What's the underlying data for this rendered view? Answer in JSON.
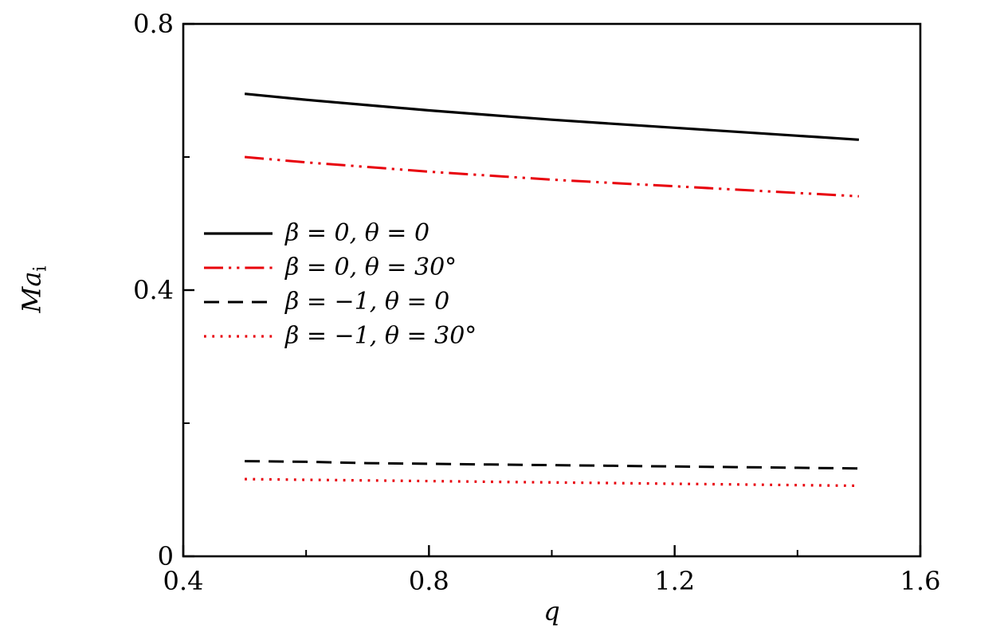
{
  "chart_data": {
    "type": "line",
    "x_axis": {
      "label": "q",
      "range": [
        0.4,
        1.6
      ],
      "major_ticks": [
        {
          "value": 0.4,
          "label": "0.4"
        },
        {
          "value": 0.8,
          "label": "0.8"
        },
        {
          "value": 1.2,
          "label": "1.2"
        },
        {
          "value": 1.6,
          "label": "1.6"
        }
      ],
      "minor_ticks": [
        0.6,
        1.0,
        1.4
      ]
    },
    "y_axis": {
      "label_main": "Ma",
      "label_sub": "i",
      "range": [
        0,
        0.8
      ],
      "major_ticks": [
        {
          "value": 0,
          "label": "0"
        },
        {
          "value": 0.4,
          "label": "0.4"
        },
        {
          "value": 0.8,
          "label": "0.8"
        }
      ],
      "minor_ticks": [
        0.2,
        0.6
      ]
    },
    "legend": {
      "position": "inside-left-middle"
    },
    "colors": {
      "black": "#000000",
      "red": "#e8000b"
    },
    "series": [
      {
        "name": "β = 0, θ = 0",
        "color": "#000000",
        "dash": "solid",
        "width": 3.2,
        "x": [
          0.5,
          0.6,
          0.7,
          0.8,
          0.9,
          1.0,
          1.1,
          1.2,
          1.3,
          1.4,
          1.5
        ],
        "y": [
          0.695,
          0.686,
          0.678,
          0.67,
          0.663,
          0.656,
          0.65,
          0.644,
          0.638,
          0.632,
          0.626
        ]
      },
      {
        "name": "β = 0, θ = 30°",
        "color": "#e8000b",
        "dash": "dash-dot-dot",
        "width": 3.0,
        "x": [
          0.5,
          0.6,
          0.7,
          0.8,
          0.9,
          1.0,
          1.1,
          1.2,
          1.3,
          1.4,
          1.5
        ],
        "y": [
          0.6,
          0.592,
          0.585,
          0.578,
          0.572,
          0.566,
          0.561,
          0.556,
          0.551,
          0.546,
          0.541
        ]
      },
      {
        "name": "β = −1, θ = 0",
        "color": "#000000",
        "dash": "dashed",
        "width": 3.0,
        "x": [
          0.5,
          0.6,
          0.7,
          0.8,
          0.9,
          1.0,
          1.1,
          1.2,
          1.3,
          1.4,
          1.5
        ],
        "y": [
          0.143,
          0.142,
          0.14,
          0.139,
          0.138,
          0.137,
          0.136,
          0.135,
          0.134,
          0.133,
          0.132
        ]
      },
      {
        "name": "β = −1, θ = 30°",
        "color": "#e8000b",
        "dash": "dotted",
        "width": 3.2,
        "x": [
          0.5,
          0.6,
          0.7,
          0.8,
          0.9,
          1.0,
          1.1,
          1.2,
          1.3,
          1.4,
          1.5
        ],
        "y": [
          0.116,
          0.115,
          0.114,
          0.113,
          0.112,
          0.111,
          0.11,
          0.109,
          0.108,
          0.107,
          0.106
        ]
      }
    ]
  }
}
